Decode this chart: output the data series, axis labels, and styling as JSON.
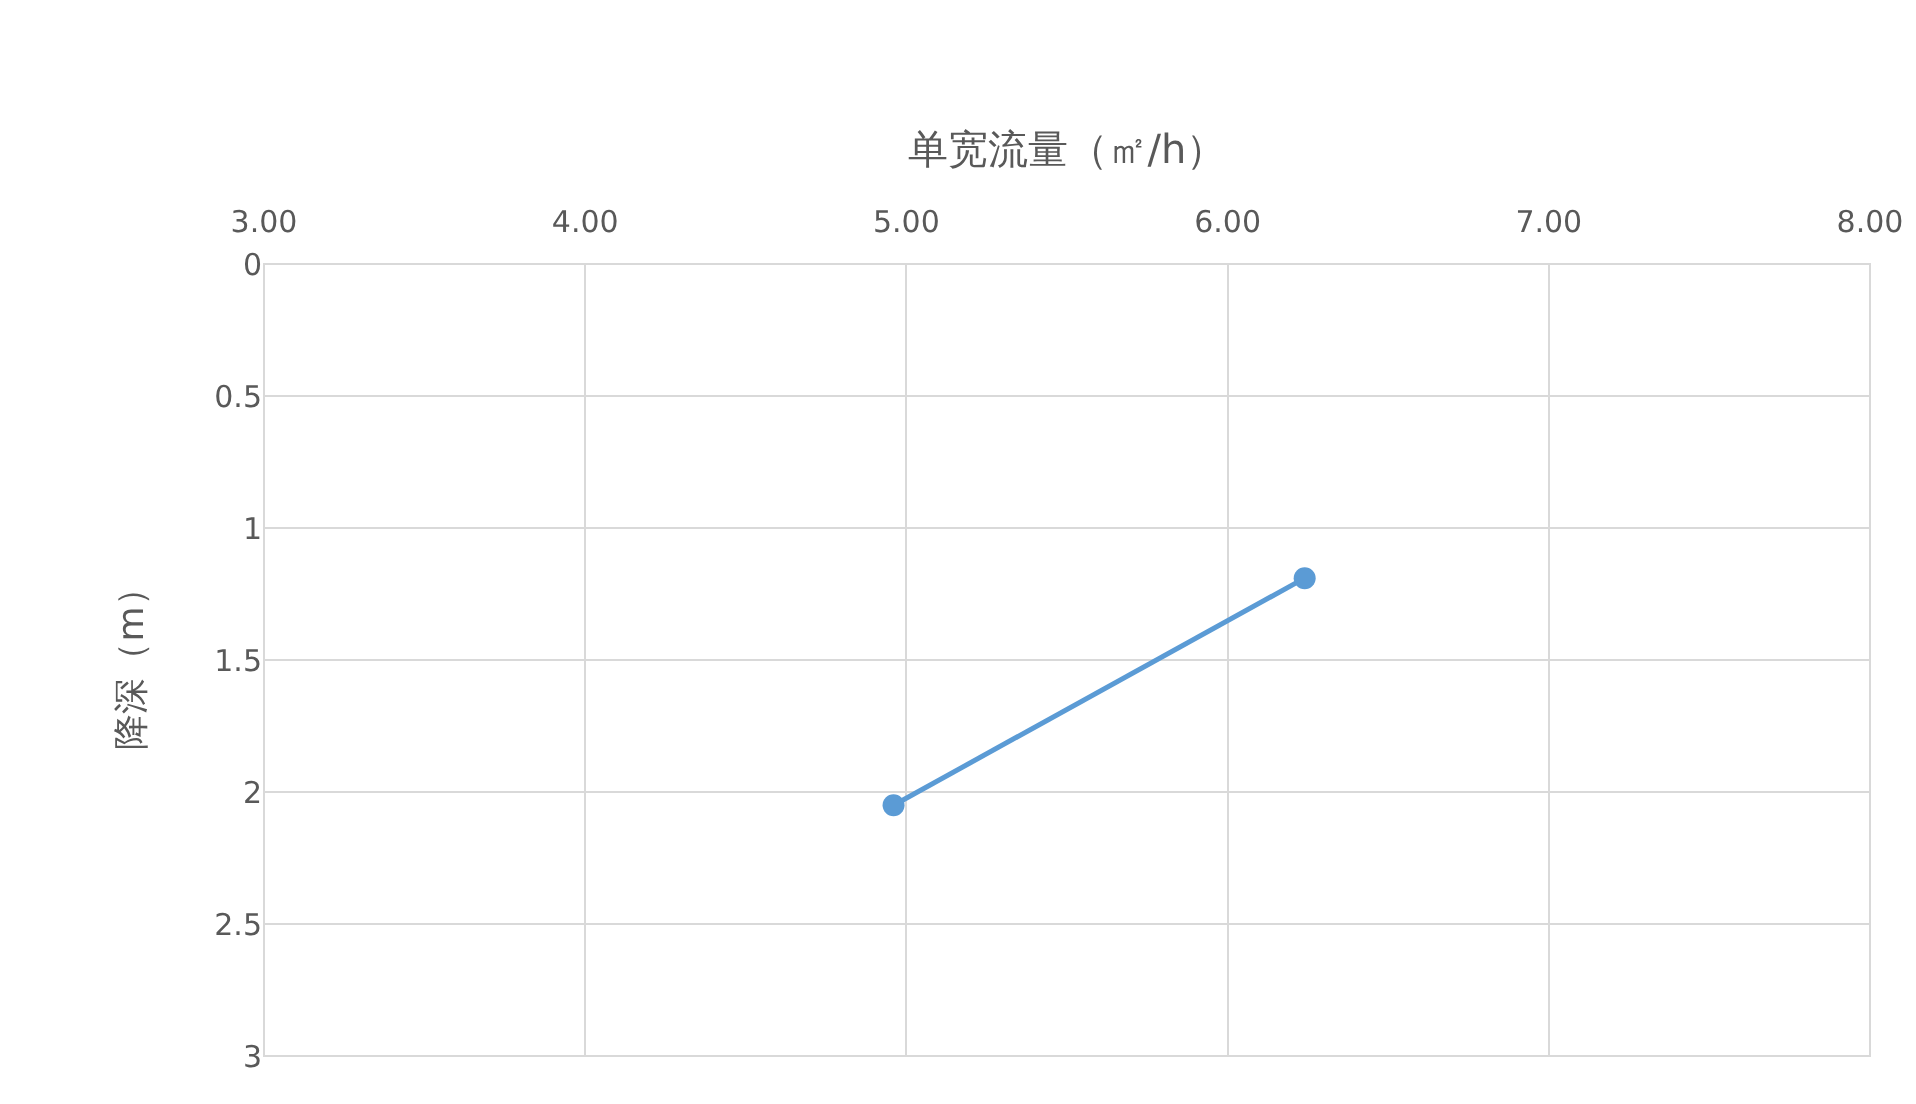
{
  "chart_data": {
    "type": "line",
    "xlabel": "单宽流量（㎡/h）",
    "ylabel": "降深（m）",
    "x": [
      4.96,
      6.24
    ],
    "series": [
      {
        "color": "#5b9bd5",
        "values": [
          2.05,
          1.19
        ]
      }
    ],
    "xlim": [
      3,
      8
    ],
    "xticks": [
      {
        "value": 3,
        "label": "3.00"
      },
      {
        "value": 4,
        "label": "4.00"
      },
      {
        "value": 5,
        "label": "5.00"
      },
      {
        "value": 6,
        "label": "6.00"
      },
      {
        "value": 7,
        "label": "7.00"
      },
      {
        "value": 8,
        "label": "8.00"
      }
    ],
    "ylim": [
      3,
      0
    ],
    "yticks": [
      0,
      0.5,
      1,
      1.5,
      2,
      2.5,
      3
    ],
    "grid": true,
    "marker": "circle",
    "line_style": "solid"
  }
}
